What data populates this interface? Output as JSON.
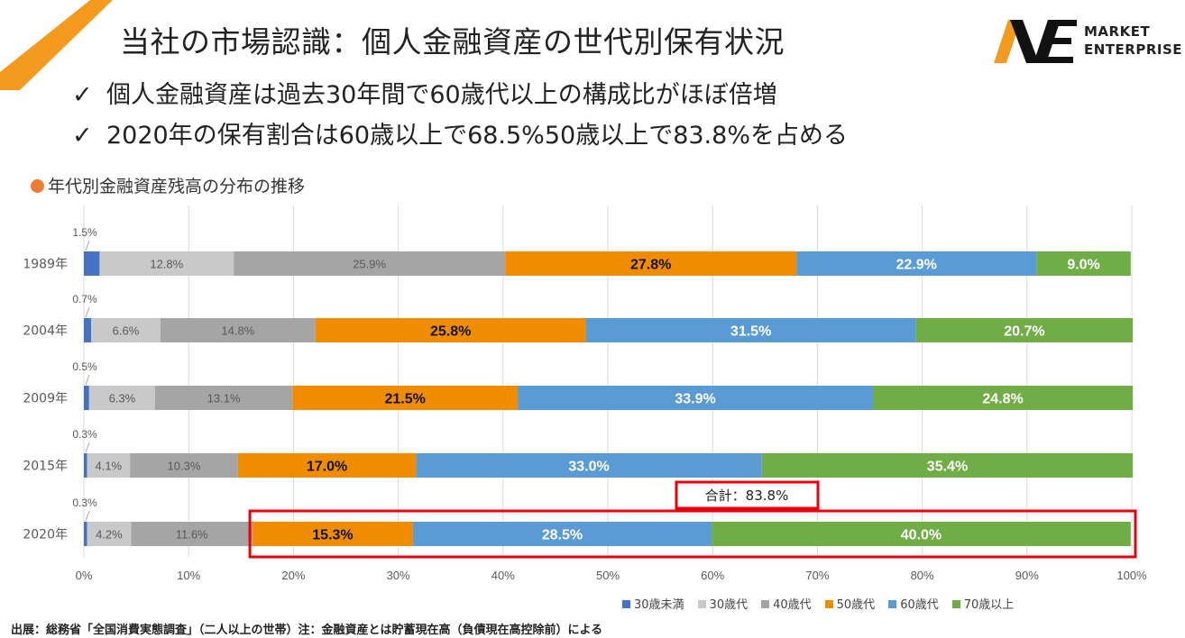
{
  "header": {
    "title": "当社の市場認識：個人金融資産の世代別保有状況",
    "bullets": [
      {
        "mark": "✓",
        "text": "個人金融資産は過去30年間で60歳代以上の構成比がほぼ倍増"
      },
      {
        "mark": "✓",
        "text": "2020年の保有割合は60歳以上で68.5%50歳以上で83.8%を占める"
      }
    ]
  },
  "logo": {
    "line1": "MARKET",
    "line2": "ENTERPRISE"
  },
  "subtitle": "年代別金融資産残高の分布の推移",
  "chart_data": {
    "type": "bar",
    "orientation": "horizontal",
    "stacked": true,
    "categories": [
      "1989年",
      "2004年",
      "2009年",
      "2015年",
      "2020年"
    ],
    "series": [
      {
        "name": "30歳未満",
        "color": "#4472C4",
        "values": [
          1.5,
          0.7,
          0.5,
          0.3,
          0.3
        ],
        "labels": [
          "1.5%",
          "0.7%",
          "0.5%",
          "0.3%",
          "0.3%"
        ]
      },
      {
        "name": "30歳代",
        "color": "#C9C9C9",
        "values": [
          12.8,
          6.6,
          6.3,
          4.1,
          4.2
        ],
        "labels": [
          "12.8%",
          "6.6%",
          "6.3%",
          "4.1%",
          "4.2%"
        ]
      },
      {
        "name": "40歳代",
        "color": "#A5A5A5",
        "values": [
          25.9,
          14.8,
          13.1,
          10.3,
          11.6
        ],
        "labels": [
          "25.9%",
          "14.8%",
          "13.1%",
          "10.3%",
          "11.6%"
        ]
      },
      {
        "name": "50歳代",
        "color": "#F08C00",
        "values": [
          27.8,
          25.8,
          21.5,
          17.0,
          15.3
        ],
        "labels": [
          "27.8%",
          "25.8%",
          "21.5%",
          "17.0%",
          "15.3%"
        ]
      },
      {
        "name": "60歳代",
        "color": "#5B9BD5",
        "values": [
          22.9,
          31.5,
          33.9,
          33.0,
          28.5
        ],
        "labels": [
          "22.9%",
          "31.5%",
          "33.9%",
          "33.0%",
          "28.5%"
        ]
      },
      {
        "name": "70歳以上",
        "color": "#70AD47",
        "values": [
          9.0,
          20.7,
          24.8,
          35.4,
          40.0
        ],
        "labels": [
          "9.0%",
          "20.7%",
          "24.8%",
          "35.4%",
          "40.0%"
        ]
      }
    ],
    "xlim": [
      0,
      100
    ],
    "xticks": [
      "0%",
      "10%",
      "20%",
      "30%",
      "40%",
      "50%",
      "60%",
      "70%",
      "80%",
      "90%",
      "100%"
    ],
    "grid": true,
    "legend_position": "bottom-right",
    "annotation": {
      "category": "2020年",
      "from_series": "50歳代",
      "text": "合計：83.8%",
      "color": "#E8000B"
    }
  },
  "source": "出展：総務省「全国消費実態調査」（二人以上の世帯）注：金融資産とは貯蓄現在高（負債現在高控除前）による"
}
